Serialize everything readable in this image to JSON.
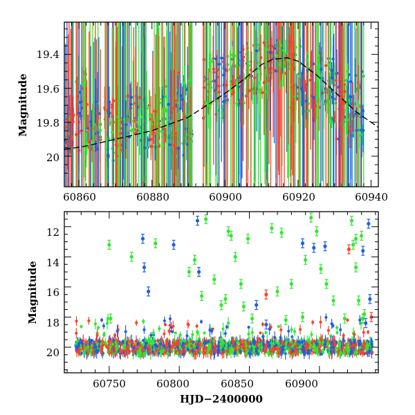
{
  "chart_data": [
    {
      "type": "scatter",
      "title": "",
      "xlabel": "",
      "ylabel": "Magnitude",
      "xlim": [
        60856,
        60942
      ],
      "ylim": [
        20.18,
        19.21
      ],
      "y_inverted": true,
      "grid": false,
      "xticks": [
        "60860",
        "60880",
        "60900",
        "60920",
        "60940"
      ],
      "yticks": [
        "19.4",
        "19.6",
        "19.8",
        "20"
      ],
      "series_colors": [
        "#2ee82e",
        "#1f5fe0",
        "#ff3f2a"
      ],
      "model_curve": {
        "color": "#000000",
        "x": [
          60856,
          60862,
          60870,
          60880,
          60890,
          60900,
          60905,
          60910,
          60913,
          60917,
          60920,
          60925,
          60930,
          60936,
          60942
        ],
        "y": [
          19.96,
          19.94,
          19.9,
          19.85,
          19.77,
          19.63,
          19.55,
          19.46,
          19.43,
          19.42,
          19.44,
          19.52,
          19.62,
          19.74,
          19.83
        ]
      },
      "density_profile": [
        {
          "x0": 60856,
          "x1": 60859,
          "mid": 19.85,
          "spread": 0.12
        },
        {
          "x0": 60859,
          "x1": 60862,
          "mid": 19.75,
          "spread": 0.25
        },
        {
          "x0": 60862,
          "x1": 60866,
          "mid": 19.82,
          "spread": 0.15
        },
        {
          "x0": 60867,
          "x1": 60872,
          "mid": 19.85,
          "spread": 0.18
        },
        {
          "x0": 60872,
          "x1": 60878,
          "mid": 19.78,
          "spread": 0.14
        },
        {
          "x0": 60878,
          "x1": 60884,
          "mid": 19.8,
          "spread": 0.16
        },
        {
          "x0": 60884,
          "x1": 60891,
          "mid": 19.75,
          "spread": 0.25
        },
        {
          "x0": 60894,
          "x1": 60900,
          "mid": 19.6,
          "spread": 0.18
        },
        {
          "x0": 60900,
          "x1": 60906,
          "mid": 19.55,
          "spread": 0.18
        },
        {
          "x0": 60906,
          "x1": 60912,
          "mid": 19.48,
          "spread": 0.15
        },
        {
          "x0": 60912,
          "x1": 60918,
          "mid": 19.42,
          "spread": 0.1
        },
        {
          "x0": 60918,
          "x1": 60923,
          "mid": 19.55,
          "spread": 0.2
        },
        {
          "x0": 60923,
          "x1": 60930,
          "mid": 19.62,
          "spread": 0.2
        },
        {
          "x0": 60930,
          "x1": 60938,
          "mid": 19.7,
          "spread": 0.2
        }
      ]
    },
    {
      "type": "scatter",
      "title": "",
      "xlabel": "HJD−2400000",
      "ylabel": "Magnitude",
      "xlim": [
        60718,
        60942
      ],
      "ylim": [
        21.7,
        11.0
      ],
      "y_inverted": true,
      "grid": false,
      "xticks": [
        "60750",
        "60800",
        "60850",
        "60900"
      ],
      "yticks": [
        "12",
        "14",
        "16",
        "18",
        "20"
      ],
      "series_colors": [
        "#2ee82e",
        "#1f5fe0",
        "#ff3f2a"
      ],
      "baseline": {
        "x0": 60726,
        "x1": 60938,
        "mag": 20.0,
        "spread": 0.45
      },
      "series": [
        {
          "color": "#2ee82e",
          "points": [
            {
              "x": 60750,
              "y": 13.2
            },
            {
              "x": 60751,
              "y": 18.1
            },
            {
              "x": 60766,
              "y": 14.0
            },
            {
              "x": 60783,
              "y": 13.1
            },
            {
              "x": 60807,
              "y": 15.0
            },
            {
              "x": 60811,
              "y": 14.2
            },
            {
              "x": 60816,
              "y": 16.6
            },
            {
              "x": 60819,
              "y": 11.5
            },
            {
              "x": 60825,
              "y": 15.5
            },
            {
              "x": 60830,
              "y": 17.2
            },
            {
              "x": 60833,
              "y": 16.8
            },
            {
              "x": 60835,
              "y": 12.3
            },
            {
              "x": 60837,
              "y": 12.6
            },
            {
              "x": 60840,
              "y": 14.0
            },
            {
              "x": 60844,
              "y": 15.8
            },
            {
              "x": 60846,
              "y": 17.3
            },
            {
              "x": 60849,
              "y": 12.8
            },
            {
              "x": 60852,
              "y": 18.1
            },
            {
              "x": 60866,
              "y": 12.1
            },
            {
              "x": 60870,
              "y": 16.3
            },
            {
              "x": 60873,
              "y": 12.4
            },
            {
              "x": 60876,
              "y": 18.2
            },
            {
              "x": 60880,
              "y": 15.8
            },
            {
              "x": 60888,
              "y": 18.0
            },
            {
              "x": 60890,
              "y": 14.2
            },
            {
              "x": 60894,
              "y": 11.4
            },
            {
              "x": 60898,
              "y": 12.3
            },
            {
              "x": 60901,
              "y": 14.8
            },
            {
              "x": 60905,
              "y": 15.8
            },
            {
              "x": 60910,
              "y": 16.9
            },
            {
              "x": 60918,
              "y": 18.1
            },
            {
              "x": 60923,
              "y": 11.6
            },
            {
              "x": 60924,
              "y": 13.2
            },
            {
              "x": 60926,
              "y": 12.8
            },
            {
              "x": 60926,
              "y": 14.7
            },
            {
              "x": 60928,
              "y": 16.9
            },
            {
              "x": 60930,
              "y": 12.6
            },
            {
              "x": 60931,
              "y": 18.1
            },
            {
              "x": 60932,
              "y": 17.8
            }
          ]
        },
        {
          "color": "#1f5fe0",
          "points": [
            {
              "x": 60774,
              "y": 12.8
            },
            {
              "x": 60775,
              "y": 14.7
            },
            {
              "x": 60778,
              "y": 16.3
            },
            {
              "x": 60796,
              "y": 13.2
            },
            {
              "x": 60813,
              "y": 11.6
            },
            {
              "x": 60814,
              "y": 15.0
            },
            {
              "x": 60855,
              "y": 17.2
            },
            {
              "x": 60862,
              "y": 18.5
            },
            {
              "x": 60888,
              "y": 13.1
            },
            {
              "x": 60896,
              "y": 13.4
            },
            {
              "x": 60904,
              "y": 13.3
            },
            {
              "x": 60931,
              "y": 13.6
            },
            {
              "x": 60933,
              "y": 18.4
            },
            {
              "x": 60935,
              "y": 11.8
            },
            {
              "x": 60936,
              "y": 16.8
            }
          ]
        },
        {
          "color": "#ff3f2a",
          "points": [
            {
              "x": 60862,
              "y": 16.5
            },
            {
              "x": 60921,
              "y": 13.5
            },
            {
              "x": 60937,
              "y": 18.0
            }
          ]
        }
      ]
    }
  ]
}
